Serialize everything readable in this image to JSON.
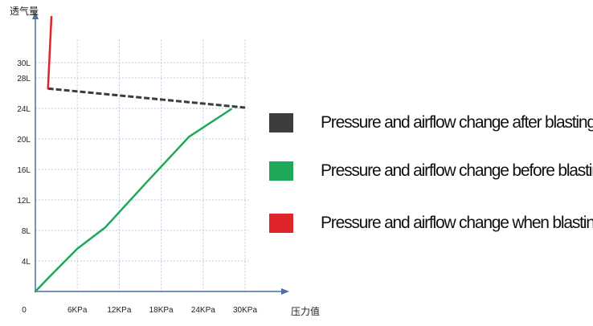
{
  "chart_data": {
    "type": "line",
    "ylabel": "透气量",
    "xlabel": "压力值",
    "origin_label": "0",
    "x_ticks": [
      {
        "value": 6,
        "label": "6KPa"
      },
      {
        "value": 12,
        "label": "12KPa"
      },
      {
        "value": 18,
        "label": "18KPa"
      },
      {
        "value": 24,
        "label": "24KPa"
      },
      {
        "value": 30,
        "label": "30KPa"
      }
    ],
    "y_ticks": [
      {
        "value": 4,
        "label": "4L"
      },
      {
        "value": 8,
        "label": "8L"
      },
      {
        "value": 12,
        "label": "12L"
      },
      {
        "value": 16,
        "label": "16L"
      },
      {
        "value": 20,
        "label": "20L"
      },
      {
        "value": 24,
        "label": "24L"
      },
      {
        "value": 28,
        "label": "28L"
      },
      {
        "value": 30,
        "label": "30L"
      }
    ],
    "xlim": [
      0,
      35
    ],
    "ylim": [
      0,
      36
    ],
    "grid": true,
    "series": [
      {
        "name": "Pressure and airflow change  after blasting",
        "color": "#3c3c3c",
        "dashed": true,
        "points": [
          [
            1.8,
            26.6
          ],
          [
            30,
            24.1
          ]
        ]
      },
      {
        "name": "Pressure and airflow change  before blasting",
        "color": "#1fa85a",
        "dashed": false,
        "points": [
          [
            0,
            0
          ],
          [
            2,
            1.9
          ],
          [
            6,
            5.6
          ],
          [
            10,
            8.4
          ],
          [
            16,
            14.4
          ],
          [
            22,
            20.3
          ],
          [
            28,
            23.9
          ]
        ]
      },
      {
        "name": "Pressure and airflow change  when blasting",
        "color": "#e0242b",
        "dashed": false,
        "points": [
          [
            1.8,
            26.6
          ],
          [
            2.3,
            36
          ]
        ]
      }
    ],
    "legend_position": "right"
  }
}
